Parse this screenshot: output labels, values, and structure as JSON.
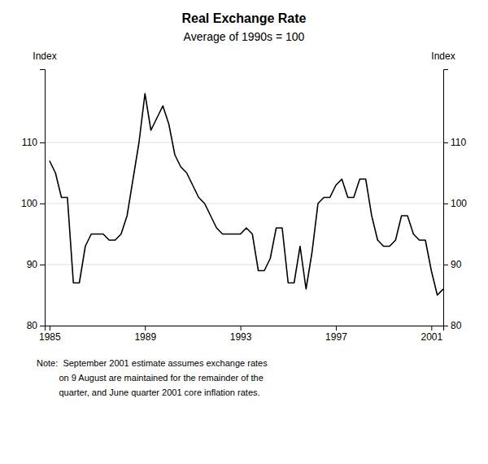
{
  "chart_data": {
    "type": "line",
    "title": "Real Exchange Rate",
    "subtitle": "Average of 1990s = 100",
    "ylabel": "Index",
    "y2label": "Index",
    "annotations": [
      "Note:  September 2001 estimate assumes exchange rates",
      "         on 9 August are maintained for the remainder of the",
      "         quarter, and June quarter 2001 core inflation rates."
    ],
    "color": "#000000",
    "grid": true,
    "xlim": [
      1984.8,
      2001.5
    ],
    "xticks": [
      1985,
      1989,
      1993,
      1997,
      2001
    ],
    "ylim": [
      80,
      122
    ],
    "yticks": [
      80,
      90,
      100,
      110
    ],
    "y2lim": [
      80,
      122
    ],
    "y2ticks": [
      80,
      90,
      100,
      110
    ],
    "x": [
      1985.0,
      1985.25,
      1985.5,
      1985.75,
      1986.0,
      1986.25,
      1986.5,
      1986.75,
      1987.0,
      1987.25,
      1987.5,
      1987.75,
      1988.0,
      1988.25,
      1988.5,
      1988.75,
      1989.0,
      1989.25,
      1989.5,
      1989.75,
      1990.0,
      1990.25,
      1990.5,
      1990.75,
      1991.0,
      1991.25,
      1991.5,
      1991.75,
      1992.0,
      1992.25,
      1992.5,
      1992.75,
      1993.0,
      1993.25,
      1993.5,
      1993.75,
      1994.0,
      1994.25,
      1994.5,
      1994.75,
      1995.0,
      1995.25,
      1995.5,
      1995.75,
      1996.0,
      1996.25,
      1996.5,
      1996.75,
      1997.0,
      1997.25,
      1997.5,
      1997.75,
      1998.0,
      1998.25,
      1998.5,
      1998.75,
      1999.0,
      1999.25,
      1999.5,
      1999.75,
      2000.0,
      2000.25,
      2000.5,
      2000.75,
      2001.0,
      2001.25,
      2001.5
    ],
    "values": [
      107,
      105,
      101,
      101,
      87,
      87,
      93,
      95,
      95,
      95,
      94,
      94,
      95,
      98,
      104,
      110,
      118,
      112,
      114,
      116,
      113,
      108,
      106,
      105,
      103,
      101,
      100,
      98,
      96,
      95,
      95,
      95,
      95,
      96,
      95,
      89,
      89,
      91,
      96,
      96,
      87,
      87,
      93,
      86,
      92,
      100,
      101,
      101,
      103,
      104,
      101,
      101,
      104,
      104,
      98,
      94,
      93,
      93,
      94,
      98,
      98,
      95,
      94,
      94,
      89,
      85,
      86
    ]
  }
}
